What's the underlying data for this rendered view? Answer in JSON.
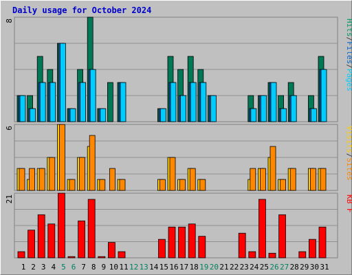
{
  "title": "Daily usage for October 2024",
  "chart_data": [
    {
      "type": "bar",
      "panel": "top",
      "ymax_label": "8",
      "ylim": [
        0,
        8
      ],
      "legend": [
        {
          "text": "Pages",
          "color": "#00ccff"
        },
        {
          "text": "/",
          "color": "#404040"
        },
        {
          "text": "Files",
          "color": "#0066cc"
        },
        {
          "text": "/",
          "color": "#404040"
        },
        {
          "text": "Hits",
          "color": "#009966"
        }
      ],
      "series": [
        {
          "name": "Hits",
          "color": "#007755",
          "values": [
            2,
            2,
            5,
            4,
            6,
            1,
            4,
            8,
            1,
            3,
            3,
            0,
            0,
            0,
            1,
            5,
            4,
            5,
            4,
            2,
            0,
            0,
            0,
            2,
            2,
            3,
            2,
            3,
            0,
            2,
            5
          ]
        },
        {
          "name": "Files",
          "color": "#0066cc",
          "values": [
            2,
            1,
            3,
            3,
            6,
            1,
            3,
            4,
            1,
            0,
            3,
            0,
            0,
            0,
            1,
            3,
            2,
            3,
            3,
            2,
            0,
            0,
            0,
            1,
            2,
            3,
            1,
            2,
            0,
            1,
            4
          ]
        },
        {
          "name": "Pages",
          "color": "#00ccff",
          "values": [
            2,
            1,
            3,
            3,
            6,
            1,
            3,
            4,
            1,
            0,
            3,
            0,
            0,
            0,
            1,
            3,
            2,
            3,
            3,
            2,
            0,
            0,
            0,
            1,
            2,
            3,
            1,
            2,
            0,
            1,
            4
          ]
        }
      ]
    },
    {
      "type": "bar",
      "panel": "middle",
      "ymax_label": "6",
      "ylim": [
        0,
        6
      ],
      "legend": [
        {
          "text": "Sites",
          "color": "#ff8800"
        },
        {
          "text": "/",
          "color": "#404040"
        },
        {
          "text": "Visits",
          "color": "#ffcc00"
        }
      ],
      "series": [
        {
          "name": "Visits",
          "color": "#ffcc00",
          "values": [
            2,
            1,
            2,
            3,
            6,
            1,
            3,
            4,
            1,
            0,
            1,
            0,
            0,
            0,
            1,
            3,
            1,
            2,
            1,
            0,
            0,
            0,
            0,
            1,
            2,
            3,
            1,
            2,
            0,
            2,
            2
          ]
        },
        {
          "name": "Sites",
          "color": "#ff8800",
          "values": [
            2,
            2,
            2,
            3,
            6,
            1,
            3,
            5,
            1,
            2,
            1,
            0,
            0,
            0,
            1,
            3,
            1,
            2,
            1,
            0,
            0,
            0,
            0,
            2,
            2,
            4,
            1,
            2,
            0,
            2,
            2
          ]
        }
      ]
    },
    {
      "type": "bar",
      "panel": "bottom",
      "ymax_label": "21",
      "ylim": [
        0,
        21
      ],
      "legend": [
        {
          "text": "KB F",
          "color": "#ff0000"
        }
      ],
      "series": [
        {
          "name": "KB F",
          "color": "#ff0000",
          "values": [
            2,
            9,
            14,
            11,
            21,
            0.4,
            12,
            19,
            0.4,
            5,
            2,
            0,
            0,
            0,
            6,
            10,
            10,
            11,
            7,
            0,
            0,
            0,
            8,
            2,
            19,
            1.5,
            14,
            0,
            2,
            6,
            10
          ]
        }
      ]
    }
  ],
  "x_labels": [
    "1",
    "2",
    "3",
    "4",
    "5",
    "6",
    "7",
    "8",
    "9",
    "10",
    "11",
    "12",
    "13",
    "14",
    "15",
    "16",
    "17",
    "18",
    "19",
    "20",
    "21",
    "22",
    "23",
    "24",
    "25",
    "26",
    "27",
    "28",
    "29",
    "30",
    "31"
  ],
  "weekend_days": [
    5,
    6,
    12,
    13,
    19,
    20,
    26,
    27
  ],
  "colors": {
    "weekday_label": "#000000",
    "weekend_label": "#00805f"
  }
}
